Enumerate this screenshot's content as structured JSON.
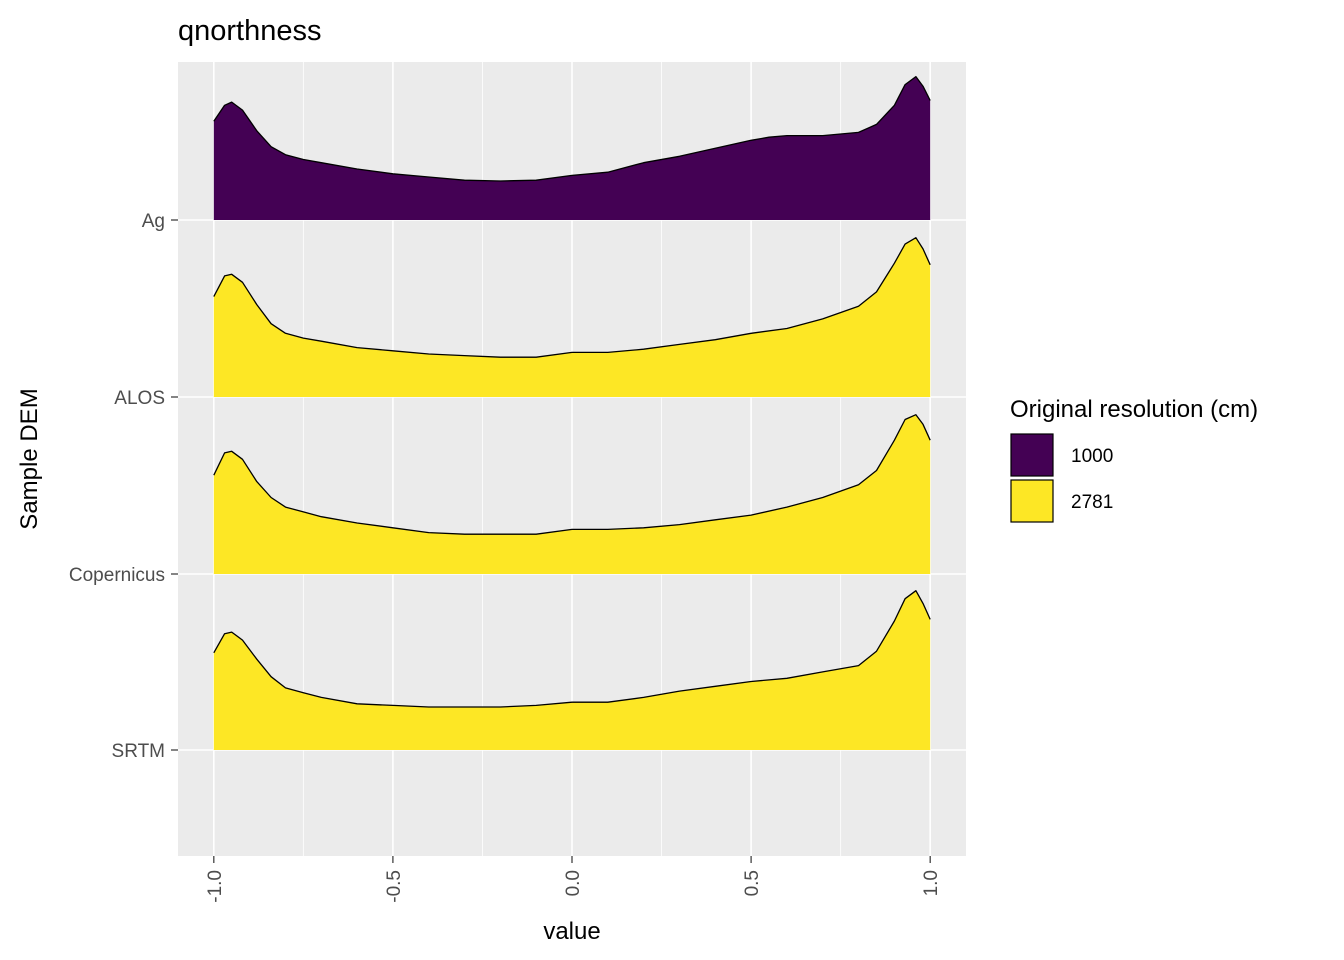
{
  "chart_data": {
    "type": "ridgeline",
    "title": "qnorthness",
    "xlabel": "value",
    "ylabel": "Sample DEM",
    "xlim": [
      -1.1,
      1.1
    ],
    "x_ticks": [
      -1.0,
      -0.5,
      0.0,
      0.5,
      1.0
    ],
    "x_tick_labels": [
      "-1.0",
      "-0.5",
      "0.0",
      "0.5",
      "1.0"
    ],
    "categories": [
      "Ag",
      "ALOS",
      "Copernicus",
      "SRTM"
    ],
    "ridge_scale": 0.9,
    "legend": {
      "title": "Original resolution (cm)",
      "position": "right",
      "entries": [
        {
          "label": "1000",
          "color": "#440154"
        },
        {
          "label": "2781",
          "color": "#FDE725"
        }
      ]
    },
    "series": [
      {
        "name": "Ag",
        "resolution": "1000",
        "color": "#440154",
        "x": [
          -1.0,
          -0.97,
          -0.95,
          -0.92,
          -0.88,
          -0.84,
          -0.8,
          -0.75,
          -0.7,
          -0.6,
          -0.5,
          -0.4,
          -0.3,
          -0.2,
          -0.1,
          0.0,
          0.1,
          0.2,
          0.3,
          0.4,
          0.5,
          0.55,
          0.6,
          0.7,
          0.8,
          0.85,
          0.9,
          0.93,
          0.96,
          0.98,
          1.0
        ],
        "y": [
          0.62,
          0.72,
          0.74,
          0.69,
          0.56,
          0.46,
          0.41,
          0.38,
          0.36,
          0.32,
          0.29,
          0.27,
          0.25,
          0.245,
          0.25,
          0.28,
          0.3,
          0.36,
          0.4,
          0.45,
          0.5,
          0.52,
          0.53,
          0.53,
          0.55,
          0.6,
          0.72,
          0.85,
          0.9,
          0.84,
          0.75
        ]
      },
      {
        "name": "ALOS",
        "resolution": "2781",
        "color": "#FDE725",
        "x": [
          -1.0,
          -0.97,
          -0.95,
          -0.92,
          -0.88,
          -0.84,
          -0.8,
          -0.75,
          -0.7,
          -0.6,
          -0.5,
          -0.4,
          -0.3,
          -0.2,
          -0.1,
          0.0,
          0.1,
          0.2,
          0.3,
          0.4,
          0.5,
          0.6,
          0.7,
          0.8,
          0.85,
          0.9,
          0.93,
          0.96,
          0.98,
          1.0
        ],
        "y": [
          0.63,
          0.76,
          0.77,
          0.72,
          0.58,
          0.46,
          0.4,
          0.37,
          0.35,
          0.31,
          0.29,
          0.27,
          0.26,
          0.25,
          0.25,
          0.28,
          0.28,
          0.3,
          0.33,
          0.36,
          0.4,
          0.43,
          0.49,
          0.57,
          0.66,
          0.84,
          0.96,
          1.0,
          0.93,
          0.83
        ]
      },
      {
        "name": "Copernicus",
        "resolution": "2781",
        "color": "#FDE725",
        "x": [
          -1.0,
          -0.97,
          -0.95,
          -0.92,
          -0.88,
          -0.84,
          -0.8,
          -0.75,
          -0.7,
          -0.6,
          -0.5,
          -0.4,
          -0.3,
          -0.2,
          -0.1,
          0.0,
          0.1,
          0.2,
          0.3,
          0.4,
          0.5,
          0.6,
          0.7,
          0.8,
          0.85,
          0.9,
          0.93,
          0.96,
          0.98,
          1.0
        ],
        "y": [
          0.62,
          0.76,
          0.77,
          0.72,
          0.58,
          0.48,
          0.42,
          0.39,
          0.36,
          0.32,
          0.29,
          0.26,
          0.25,
          0.25,
          0.25,
          0.28,
          0.28,
          0.29,
          0.31,
          0.34,
          0.37,
          0.42,
          0.48,
          0.56,
          0.65,
          0.84,
          0.97,
          1.0,
          0.94,
          0.84
        ]
      },
      {
        "name": "SRTM",
        "resolution": "2781",
        "color": "#FDE725",
        "x": [
          -1.0,
          -0.97,
          -0.95,
          -0.92,
          -0.88,
          -0.84,
          -0.8,
          -0.75,
          -0.7,
          -0.6,
          -0.5,
          -0.4,
          -0.3,
          -0.2,
          -0.1,
          0.0,
          0.1,
          0.2,
          0.3,
          0.4,
          0.5,
          0.6,
          0.7,
          0.8,
          0.85,
          0.9,
          0.93,
          0.96,
          0.98,
          1.0
        ],
        "y": [
          0.61,
          0.73,
          0.74,
          0.69,
          0.57,
          0.46,
          0.39,
          0.36,
          0.33,
          0.29,
          0.28,
          0.27,
          0.27,
          0.27,
          0.28,
          0.3,
          0.3,
          0.33,
          0.37,
          0.4,
          0.43,
          0.45,
          0.49,
          0.53,
          0.62,
          0.81,
          0.95,
          1.0,
          0.92,
          0.82
        ]
      }
    ]
  }
}
